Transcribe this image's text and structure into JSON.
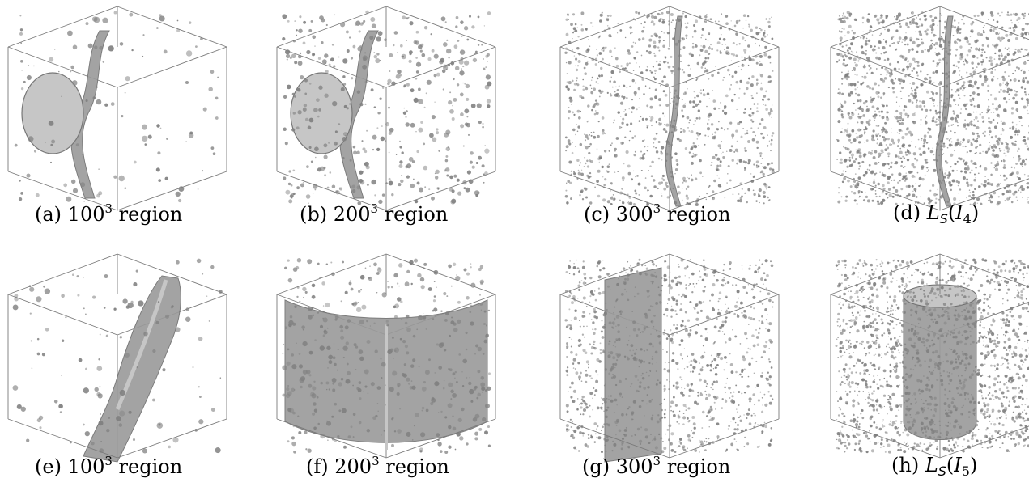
{
  "figure": {
    "panels": [
      {
        "id": "a",
        "caption_prefix": "(a) ",
        "caption_number": "100",
        "caption_exponent": "3",
        "caption_suffix": " region",
        "style": "sparse",
        "surface": "vertical-bend"
      },
      {
        "id": "b",
        "caption_prefix": "(b) ",
        "caption_number": "200",
        "caption_exponent": "3",
        "caption_suffix": " region",
        "style": "medium",
        "surface": "vertical-bend"
      },
      {
        "id": "c",
        "caption_prefix": "(c) ",
        "caption_number": "300",
        "caption_exponent": "3",
        "caption_suffix": " region",
        "style": "dense",
        "surface": "thin-vertical"
      },
      {
        "id": "d",
        "caption_prefix": "(d) ",
        "caption_math": {
          "base": "L",
          "subscript": "S",
          "open": "(",
          "arg": "I",
          "arg_subscript": "4",
          "close": ")"
        },
        "style": "very-dense",
        "surface": "thin-vertical"
      },
      {
        "id": "e",
        "caption_prefix": "(e) ",
        "caption_number": "100",
        "caption_exponent": "3",
        "caption_suffix": " region",
        "style": "sparse",
        "surface": "slanted-sheet"
      },
      {
        "id": "f",
        "caption_prefix": "(f) ",
        "caption_number": "200",
        "caption_exponent": "3",
        "caption_suffix": " region",
        "style": "medium",
        "surface": "curved-wall"
      },
      {
        "id": "g",
        "caption_prefix": "(g) ",
        "caption_number": "300",
        "caption_exponent": "3",
        "caption_suffix": " region",
        "style": "dense",
        "surface": "vertical-plane"
      },
      {
        "id": "h",
        "caption_prefix": "(h) ",
        "caption_math": {
          "base": "L",
          "subscript": "S",
          "open": "(",
          "arg": "I",
          "arg_subscript": "5",
          "close": ")"
        },
        "style": "very-dense",
        "surface": "cylinder"
      }
    ],
    "colors": {
      "surface_fill": "#9a9a9a",
      "surface_light": "#c6c6c6",
      "particle": "#808080",
      "cube_edge": "#7a7a7a"
    }
  }
}
